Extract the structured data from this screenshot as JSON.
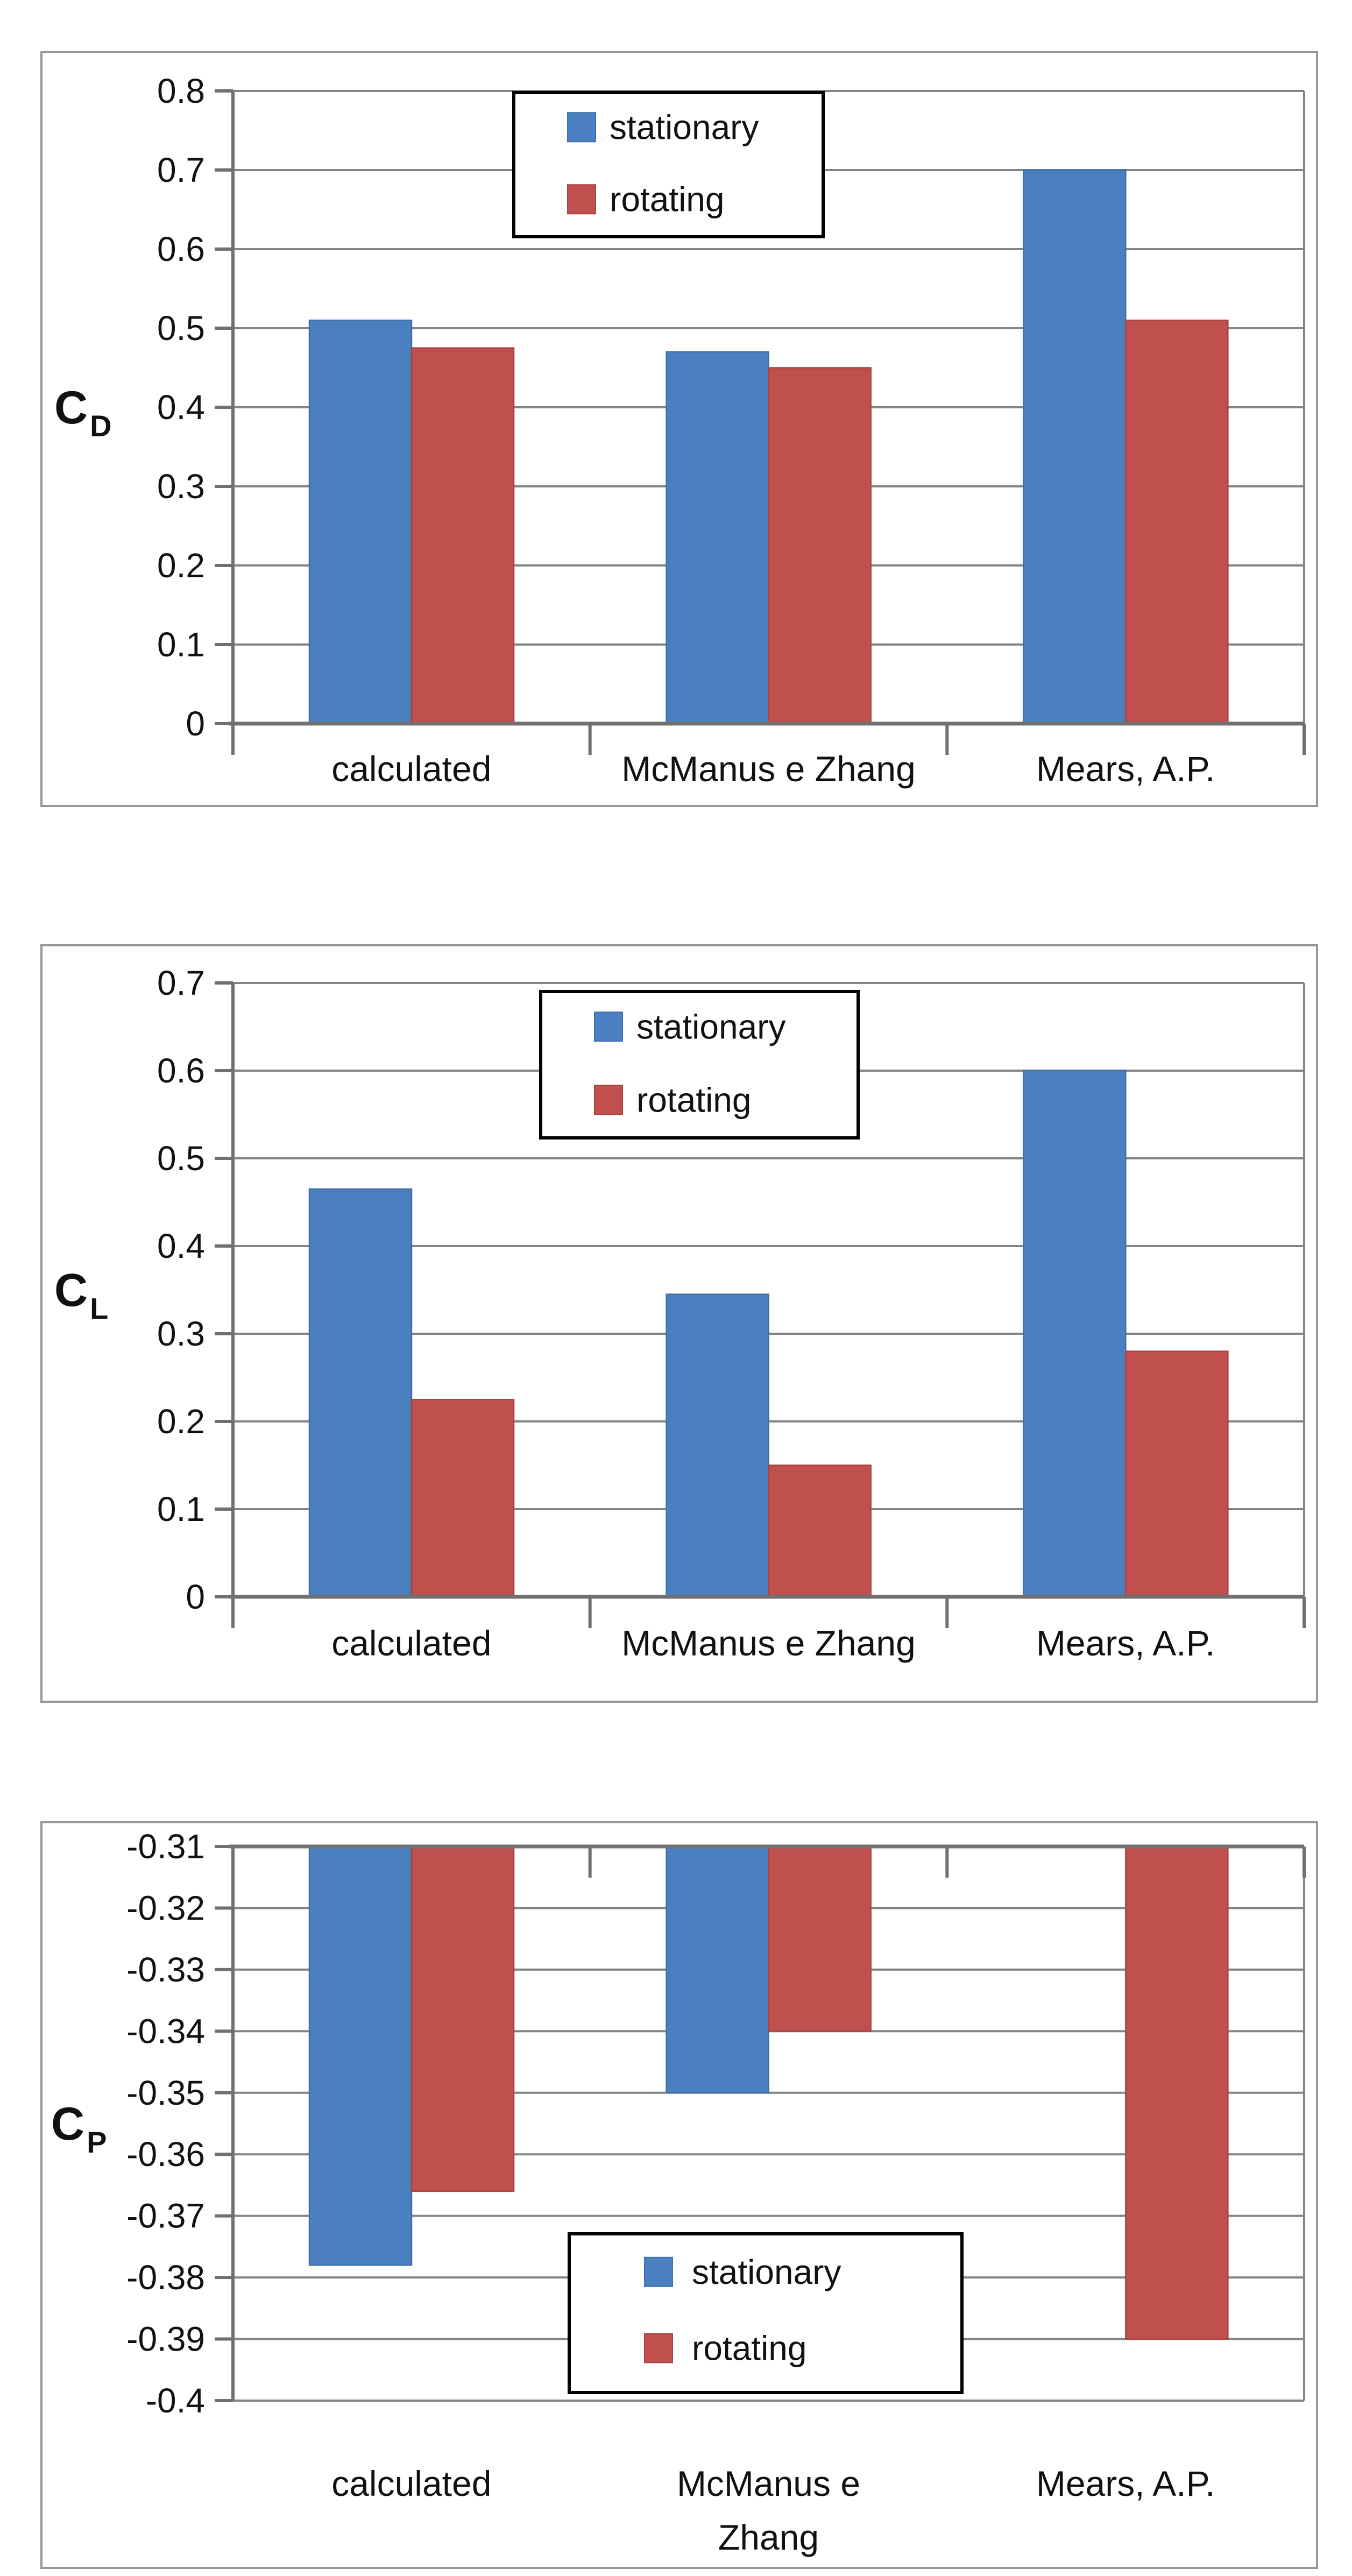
{
  "page": {
    "background": "#ffffff"
  },
  "colors": {
    "stationary": "#4A80C0",
    "rotating": "#C0504D",
    "stationary_edge": "#3F6FA8",
    "rotating_edge": "#A8433F",
    "gridline": "#848484",
    "axis": "#707070",
    "chart_border": "#979797",
    "legend_border": "#000000",
    "legend_bg": "#ffffff",
    "text": "#111111"
  },
  "chart_data": [
    {
      "id": "cd",
      "type": "bar",
      "ylabel": {
        "main": "C",
        "sub": "D"
      },
      "categories": [
        "calculated",
        "McManus e Zhang",
        "Mears, A.P."
      ],
      "series": [
        {
          "name": "stationary",
          "color_key": "stationary",
          "values": [
            0.51,
            0.47,
            0.7
          ]
        },
        {
          "name": "rotating",
          "color_key": "rotating",
          "values": [
            0.475,
            0.45,
            0.51
          ]
        }
      ],
      "ylim": [
        0,
        0.8
      ],
      "ytick_step": 0.1,
      "ytick_labels": [
        "0",
        "0.1",
        "0.2",
        "0.3",
        "0.4",
        "0.5",
        "0.6",
        "0.7",
        "0.8"
      ],
      "grid": true,
      "legend_position": "top-center"
    },
    {
      "id": "cl",
      "type": "bar",
      "ylabel": {
        "main": "C",
        "sub": "L"
      },
      "categories": [
        "calculated",
        "McManus e Zhang",
        "Mears, A.P."
      ],
      "series": [
        {
          "name": "stationary",
          "color_key": "stationary",
          "values": [
            0.465,
            0.345,
            0.6
          ]
        },
        {
          "name": "rotating",
          "color_key": "rotating",
          "values": [
            0.225,
            0.15,
            0.28
          ]
        }
      ],
      "ylim": [
        0,
        0.7
      ],
      "ytick_step": 0.1,
      "ytick_labels": [
        "0",
        "0.1",
        "0.2",
        "0.3",
        "0.4",
        "0.5",
        "0.6",
        "0.7"
      ],
      "grid": true,
      "legend_position": "top-center"
    },
    {
      "id": "cp",
      "type": "bar",
      "ylabel": {
        "main": "C",
        "sub": "P"
      },
      "categories": [
        "calculated",
        "McManus e\nZhang",
        "Mears, A.P."
      ],
      "series": [
        {
          "name": "stationary",
          "color_key": "stationary",
          "values": [
            -0.378,
            -0.35,
            null
          ]
        },
        {
          "name": "rotating",
          "color_key": "rotating",
          "values": [
            -0.366,
            -0.34,
            -0.39
          ]
        }
      ],
      "ylim": [
        -0.4,
        -0.31
      ],
      "ytick_step": 0.01,
      "ytick_labels": [
        "-0.4",
        "-0.39",
        "-0.38",
        "-0.37",
        "-0.36",
        "-0.35",
        "-0.34",
        "-0.33",
        "-0.32",
        "-0.31"
      ],
      "grid": true,
      "legend_position": "bottom-center"
    }
  ]
}
